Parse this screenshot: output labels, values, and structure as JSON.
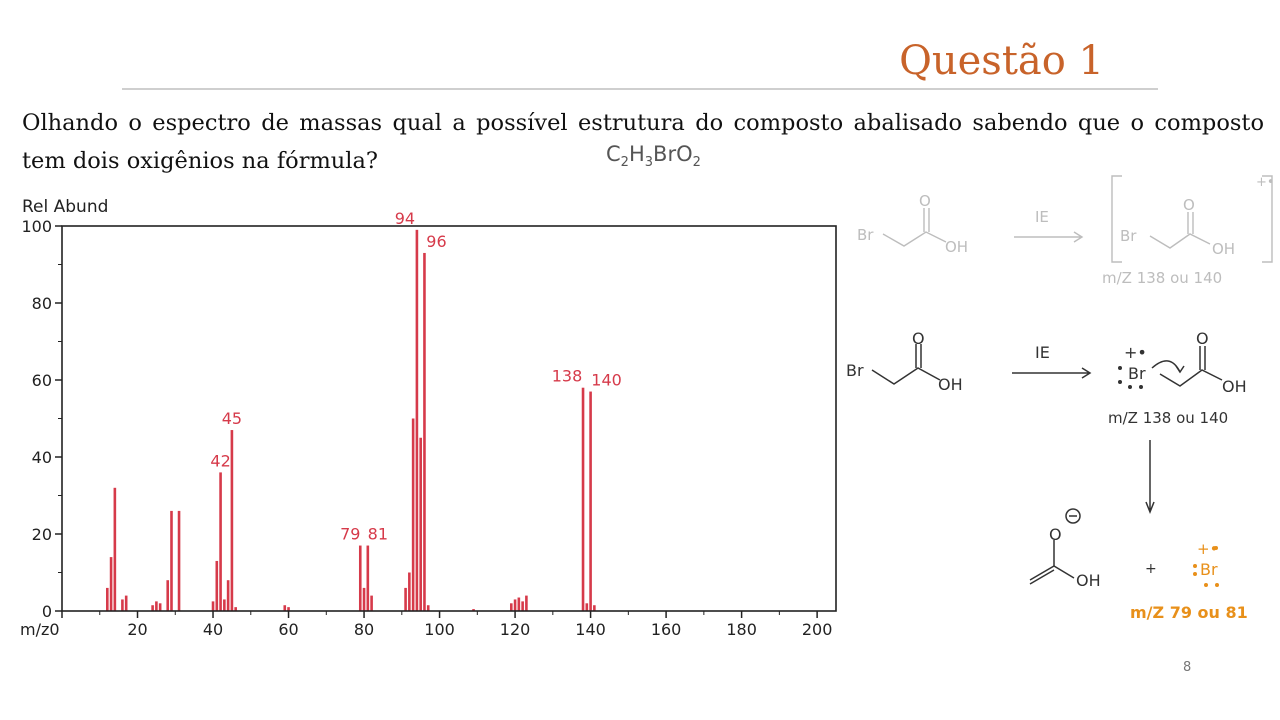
{
  "slide": {
    "title": "Questão 1",
    "question": "Olhando o espectro de massas qual a possível estrutura do composto abalisado sabendo que o composto tem dois oxigênios na fórmula?",
    "formula": {
      "c": "C",
      "c_sub": "2",
      "h": "H",
      "h_sub": "3",
      "br": "BrO",
      "o_sub": "2"
    },
    "page_number": "8"
  },
  "scheme": {
    "faded": {
      "br": "Br",
      "o": "O",
      "oh": "OH",
      "arrow_label": "IE",
      "charge": "+•",
      "mz": "m/Z 138 ou 140"
    },
    "main": {
      "br": "Br",
      "o": "O",
      "oh": "OH",
      "arrow_label": "IE",
      "br_radical": "Br",
      "charge": "+•",
      "mz": "m/Z 138 ou 140"
    },
    "products": {
      "o": "O",
      "oh": "OH",
      "plus": "+",
      "br": "Br",
      "charge": "+•",
      "mz": "m/Z 79 ou 81"
    },
    "colors": {
      "faded": "#bdbdbd",
      "ink": "#333333",
      "orange": "#e8901a"
    }
  },
  "chart_data": {
    "type": "bar",
    "ylabel": "Rel Abund",
    "xlabel": "m/z",
    "xlim": [
      0,
      205
    ],
    "ylim": [
      0,
      100
    ],
    "xticks": [
      0,
      20,
      40,
      60,
      80,
      100,
      120,
      140,
      160,
      180,
      200
    ],
    "yticks": [
      0,
      20,
      40,
      60,
      80,
      100
    ],
    "color": "#d63a4a",
    "peaks": [
      {
        "x": 12,
        "y": 6
      },
      {
        "x": 13,
        "y": 14
      },
      {
        "x": 14,
        "y": 32
      },
      {
        "x": 16,
        "y": 3
      },
      {
        "x": 17,
        "y": 4
      },
      {
        "x": 24,
        "y": 1.5
      },
      {
        "x": 25,
        "y": 2.5
      },
      {
        "x": 26,
        "y": 2
      },
      {
        "x": 28,
        "y": 8
      },
      {
        "x": 29,
        "y": 26
      },
      {
        "x": 31,
        "y": 26
      },
      {
        "x": 40,
        "y": 2.5
      },
      {
        "x": 41,
        "y": 13
      },
      {
        "x": 42,
        "y": 36
      },
      {
        "x": 43,
        "y": 3
      },
      {
        "x": 44,
        "y": 8
      },
      {
        "x": 45,
        "y": 47
      },
      {
        "x": 46,
        "y": 1
      },
      {
        "x": 59,
        "y": 1.5
      },
      {
        "x": 60,
        "y": 1
      },
      {
        "x": 79,
        "y": 17
      },
      {
        "x": 80,
        "y": 6
      },
      {
        "x": 81,
        "y": 17
      },
      {
        "x": 82,
        "y": 4
      },
      {
        "x": 91,
        "y": 6
      },
      {
        "x": 92,
        "y": 10
      },
      {
        "x": 93,
        "y": 50
      },
      {
        "x": 94,
        "y": 99
      },
      {
        "x": 95,
        "y": 45
      },
      {
        "x": 96,
        "y": 93
      },
      {
        "x": 97,
        "y": 1.5
      },
      {
        "x": 109,
        "y": 0.5
      },
      {
        "x": 119,
        "y": 2
      },
      {
        "x": 120,
        "y": 3
      },
      {
        "x": 121,
        "y": 3.5
      },
      {
        "x": 122,
        "y": 2.5
      },
      {
        "x": 123,
        "y": 4
      },
      {
        "x": 138,
        "y": 58
      },
      {
        "x": 139,
        "y": 2
      },
      {
        "x": 140,
        "y": 57
      },
      {
        "x": 141,
        "y": 1.5
      }
    ],
    "labels": [
      {
        "x": 42,
        "y": 36,
        "text": "42"
      },
      {
        "x": 45,
        "y": 47,
        "text": "45"
      },
      {
        "x": 79,
        "y": 17,
        "text": "79"
      },
      {
        "x": 81,
        "y": 17,
        "text": "81"
      },
      {
        "x": 94,
        "y": 99,
        "text": "94"
      },
      {
        "x": 96,
        "y": 93,
        "text": "96"
      },
      {
        "x": 138,
        "y": 58,
        "text": "138"
      },
      {
        "x": 140,
        "y": 57,
        "text": "140"
      }
    ]
  }
}
